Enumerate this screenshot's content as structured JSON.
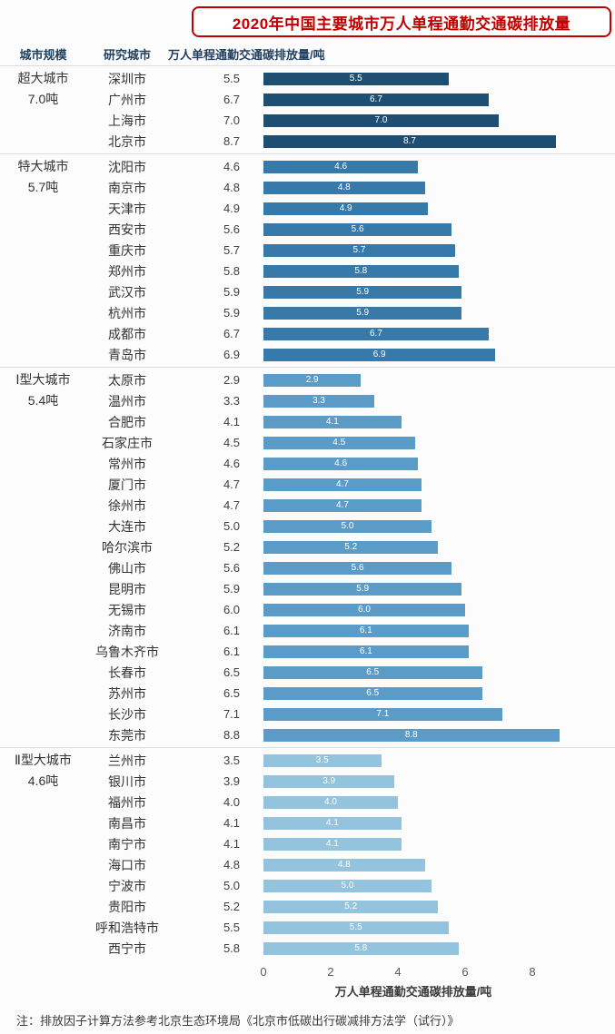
{
  "title": "2020年中国主要城市万人单程通勤交通碳排放量",
  "table_headers": {
    "scale": "城市规模",
    "city": "研究城市",
    "value": "万人单程通勤交通碳排放量/吨"
  },
  "note": "注：排放因子计算方法参考北京生态环境局《北京市低碳出行碳减排方法学（试行）》",
  "chart_data": {
    "type": "bar",
    "orientation": "horizontal",
    "title": "2020年中国主要城市万人单程通勤交通碳排放量",
    "xlabel": "万人单程通勤交通碳排放量/吨",
    "xlim": [
      0,
      9
    ],
    "xticks": [
      0,
      2,
      4,
      6,
      8
    ],
    "grid": false,
    "legend": false,
    "groups": [
      {
        "scale": "超大城市",
        "average_label": "7.0吨",
        "bar_color": "#1e4f72",
        "cities": [
          {
            "name": "深圳市",
            "value": 5.5
          },
          {
            "name": "广州市",
            "value": 6.7
          },
          {
            "name": "上海市",
            "value": 7.0
          },
          {
            "name": "北京市",
            "value": 8.7
          }
        ]
      },
      {
        "scale": "特大城市",
        "average_label": "5.7吨",
        "bar_color": "#3779a8",
        "cities": [
          {
            "name": "沈阳市",
            "value": 4.6
          },
          {
            "name": "南京市",
            "value": 4.8
          },
          {
            "name": "天津市",
            "value": 4.9
          },
          {
            "name": "西安市",
            "value": 5.6
          },
          {
            "name": "重庆市",
            "value": 5.7
          },
          {
            "name": "郑州市",
            "value": 5.8
          },
          {
            "name": "武汉市",
            "value": 5.9
          },
          {
            "name": "杭州市",
            "value": 5.9
          },
          {
            "name": "成都市",
            "value": 6.7
          },
          {
            "name": "青岛市",
            "value": 6.9
          }
        ]
      },
      {
        "scale": "Ⅰ型大城市",
        "average_label": "5.4吨",
        "bar_color": "#5b9bc8",
        "cities": [
          {
            "name": "太原市",
            "value": 2.9
          },
          {
            "name": "温州市",
            "value": 3.3
          },
          {
            "name": "合肥市",
            "value": 4.1
          },
          {
            "name": "石家庄市",
            "value": 4.5
          },
          {
            "name": "常州市",
            "value": 4.6
          },
          {
            "name": "厦门市",
            "value": 4.7
          },
          {
            "name": "徐州市",
            "value": 4.7
          },
          {
            "name": "大连市",
            "value": 5.0
          },
          {
            "name": "哈尔滨市",
            "value": 5.2
          },
          {
            "name": "佛山市",
            "value": 5.6
          },
          {
            "name": "昆明市",
            "value": 5.9
          },
          {
            "name": "无锡市",
            "value": 6.0
          },
          {
            "name": "济南市",
            "value": 6.1
          },
          {
            "name": "乌鲁木齐市",
            "value": 6.1
          },
          {
            "name": "长春市",
            "value": 6.5
          },
          {
            "name": "苏州市",
            "value": 6.5
          },
          {
            "name": "长沙市",
            "value": 7.1
          },
          {
            "name": "东莞市",
            "value": 8.8
          }
        ]
      },
      {
        "scale": "Ⅱ型大城市",
        "average_label": "4.6吨",
        "bar_color": "#94c4dd",
        "cities": [
          {
            "name": "兰州市",
            "value": 3.5
          },
          {
            "name": "银川市",
            "value": 3.9
          },
          {
            "name": "福州市",
            "value": 4.0
          },
          {
            "name": "南昌市",
            "value": 4.1
          },
          {
            "name": "南宁市",
            "value": 4.1
          },
          {
            "name": "海口市",
            "value": 4.8
          },
          {
            "name": "宁波市",
            "value": 5.0
          },
          {
            "name": "贵阳市",
            "value": 5.2
          },
          {
            "name": "呼和浩特市",
            "value": 5.5
          },
          {
            "name": "西宁市",
            "value": 5.8
          }
        ]
      }
    ]
  }
}
